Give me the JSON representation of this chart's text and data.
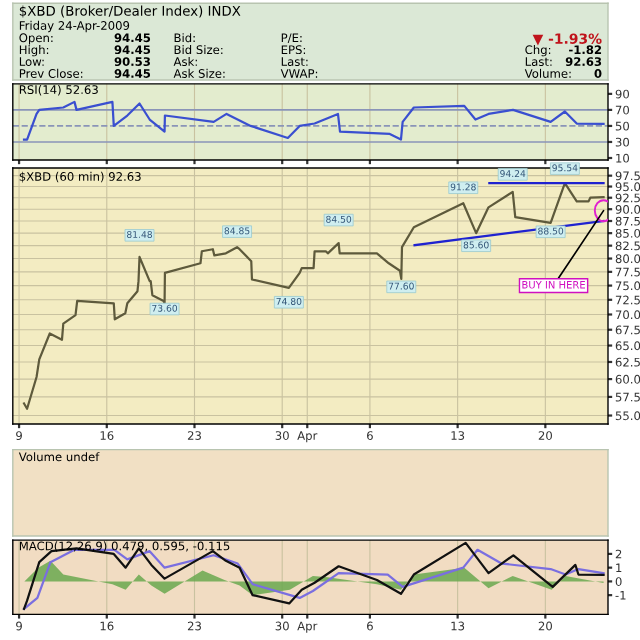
{
  "chart_data": [
    {
      "type": "other",
      "title": "$XBD (Broker/Dealer Index) INDX",
      "annotations": [
        "Friday 24-Apr-2009",
        "Open:",
        "94.45",
        "Bid:",
        "P/E:",
        "▼ -1.93%",
        "High:",
        "94.45",
        "Bid Size:",
        "EPS:",
        "Chg:",
        "-1.82",
        "Low:",
        "90.53",
        "Ask:",
        "Last:",
        "Last:",
        "92.63",
        "Prev Close:",
        "94.45",
        "Ask Size:",
        "VWAP:",
        "Volume:",
        "0"
      ]
    },
    {
      "type": "line",
      "title": "RSI(14) 52.63",
      "x": [
        "2009-03-09T09:30",
        "2009-03-09T15:21",
        "2009-03-10T09:30",
        "2009-03-10T14:42",
        "2009-03-12T12:45",
        "2009-03-13T10:09",
        "2009-03-13T14:03",
        "2009-03-16T10:48",
        "2009-03-16T13:24",
        "2009-03-17T15:21",
        "2009-03-18T14:42",
        "2009-03-19T10:09",
        "2009-03-20T14:42",
        "2009-03-20T15:21",
        "2009-03-24T12:45",
        "2009-03-25T13:24",
        "2009-03-27T11:27",
        "2009-03-30T10:48",
        "2009-03-31T09:30",
        "2009-04-01T14:03",
        "2009-04-03T10:48",
        "2009-04-03T14:42",
        "2009-04-07T14:03",
        "2009-04-08T11:27",
        "2009-04-08T14:42",
        "2009-04-09T12:06",
        "2009-04-13T12:45",
        "2009-04-14T10:09",
        "2009-04-15T11:08",
        "2009-04-17T10:09",
        "2009-04-20T10:09",
        "2009-04-21T13:24",
        "2009-04-22T12:06",
        "2009-04-24T15:30"
      ],
      "series": [
        {
          "color": "#3a4fd0",
          "values": [
            33,
            33,
            65,
            70,
            73,
            80,
            70,
            80,
            50,
            63,
            78,
            58,
            43,
            63,
            55,
            65,
            50,
            35,
            50,
            53,
            65,
            43,
            40,
            33,
            55,
            73,
            75,
            58,
            65,
            70,
            55,
            68,
            53,
            52.63
          ]
        }
      ],
      "ref_lines": [
        {
          "axis": "y",
          "value": 70,
          "color": "#8a94b8",
          "line_style": "solid"
        },
        {
          "axis": "y",
          "value": 50,
          "color": "#8a94b8",
          "line_style": "dashed"
        },
        {
          "axis": "y",
          "value": 30,
          "color": "#8a94b8",
          "line_style": "solid"
        }
      ],
      "xlim": [
        "2009-03-08T12:00",
        "2009-04-25T00:00"
      ],
      "xticks": [
        "2009-03-09",
        "2009-03-16",
        "2009-03-23",
        "2009-03-30",
        "2009-04-01",
        "2009-04-06",
        "2009-04-13",
        "2009-04-20"
      ],
      "ylim": [
        7.5,
        102.5
      ],
      "yticks": [
        90,
        70,
        50,
        30,
        10
      ],
      "tick_labels": "y",
      "grid": "x"
    },
    {
      "type": "line",
      "title": "$XBD (60 min) 92.63",
      "x": [
        "2009-03-09T09:30",
        "2009-03-09T15:21",
        "2009-03-10T09:30",
        "2009-03-10T14:42",
        "2009-03-11T10:48",
        "2009-03-12T10:09",
        "2009-03-12T12:45",
        "2009-03-13T12:06",
        "2009-03-13T15:21",
        "2009-03-16T13:24",
        "2009-03-16T15:21",
        "2009-03-17T11:27",
        "2009-03-17T15:21",
        "2009-03-18T10:48",
        "2009-03-18T12:45",
        "2009-03-18T14:42",
        "2009-03-19T10:09",
        "2009-03-19T12:06",
        "2009-03-19T15:21",
        "2009-03-20T12:45",
        "2009-03-20T14:42",
        "2009-03-20T15:21",
        "2009-03-23T11:27",
        "2009-03-23T14:03",
        "2009-03-24T11:08",
        "2009-03-24T14:03",
        "2009-03-25T12:06",
        "2009-03-26T09:30",
        "2009-03-26T14:22",
        "2009-03-27T12:45",
        "2009-03-27T14:03",
        "2009-03-30T12:45",
        "2009-03-31T09:30",
        "2009-03-31T13:24",
        "2009-04-01T12:06",
        "2009-04-01T14:03",
        "2009-04-02T11:27",
        "2009-04-02T15:21",
        "2009-04-03T12:06",
        "2009-04-03T14:03",
        "2009-04-06T13:24",
        "2009-04-07T12:06",
        "2009-04-08T09:30",
        "2009-04-08T12:06",
        "2009-04-08T13:24",
        "2009-04-09T12:06",
        "2009-04-13T10:48",
        "2009-04-14T11:27",
        "2009-04-15T11:08",
        "2009-04-17T09:30",
        "2009-04-17T14:22",
        "2009-04-20T10:09",
        "2009-04-21T13:24",
        "2009-04-22T12:06",
        "2009-04-23T10:48",
        "2009-04-23T14:03",
        "2009-04-24T15:30"
      ],
      "series": [
        {
          "color": "#5e5a3c",
          "values": [
            56.6,
            55.9,
            60.3,
            62.9,
            66.9,
            65.9,
            68.5,
            69.9,
            72.3,
            71.9,
            69.2,
            70.2,
            71.9,
            74.0,
            75.8,
            80.3,
            75.8,
            75.8,
            73.3,
            72.3,
            71.9,
            77.3,
            79.1,
            81.4,
            81.8,
            80.6,
            81.0,
            82.2,
            81.8,
            79.5,
            76.1,
            74.6,
            77.3,
            78.2,
            78.2,
            81.4,
            81.4,
            81.0,
            83.0,
            81.0,
            81.0,
            79.1,
            77.7,
            76.2,
            82.2,
            86.2,
            91.3,
            85.0,
            90.4,
            93.8,
            88.3,
            87.1,
            95.8,
            91.7,
            91.7,
            92.5,
            92.63
          ]
        },
        {
          "type": "line",
          "color": "#1f22d0",
          "x": [
            "2009-04-15T12:45",
            "2009-04-24T15:30"
          ],
          "values": [
            95.8,
            95.8
          ]
        },
        {
          "type": "line",
          "color": "#1f22d0",
          "x": [
            "2009-04-09T13:24",
            "2009-04-24T15:30"
          ],
          "values": [
            82.6,
            87.5
          ]
        }
      ],
      "annotations": [
        {
          "text": "81.48",
          "x": "2009-03-18T14:42",
          "y": 81.48
        },
        {
          "text": "73.60",
          "x": "2009-03-20T14:42",
          "y": 73.6
        },
        {
          "text": "84.85",
          "x": "2009-03-26T09:30",
          "y": 82.2
        },
        {
          "text": "74.80",
          "x": "2009-03-30T12:45",
          "y": 74.8
        },
        {
          "text": "84.50",
          "x": "2009-04-03T12:06",
          "y": 84.5
        },
        {
          "text": "77.60",
          "x": "2009-04-08T12:06",
          "y": 77.6
        },
        {
          "text": "91.28",
          "x": "2009-04-13T10:48",
          "y": 91.28
        },
        {
          "text": "85.60",
          "x": "2009-04-14T11:27",
          "y": 85.6
        },
        {
          "text": "94.24",
          "x": "2009-04-17T09:30",
          "y": 94.24
        },
        {
          "text": "88.50",
          "x": "2009-04-20T10:09",
          "y": 88.5
        },
        {
          "text": "95.54",
          "x": "2009-04-21T13:24",
          "y": 95.54
        },
        {
          "text": "BUY IN HERE",
          "x": "2009-04-24T15:30",
          "y": 89.7
        }
      ],
      "log": true,
      "xlim": [
        "2009-03-08T12:00",
        "2009-04-25T00:00"
      ],
      "xticks": [
        {
          "value": "2009-03-09",
          "label": "9"
        },
        {
          "value": "2009-03-16",
          "label": "16"
        },
        {
          "value": "2009-03-23",
          "label": "23"
        },
        {
          "value": "2009-03-30",
          "label": "30"
        },
        {
          "value": "2009-04-01",
          "label": "Apr"
        },
        {
          "value": "2009-04-06",
          "label": "6"
        },
        {
          "value": "2009-04-13",
          "label": "13"
        },
        {
          "value": "2009-04-20",
          "label": "20"
        }
      ],
      "ylim": [
        53.9,
        99.3
      ],
      "yticks": [
        {
          "value": 55,
          "label": "55.0"
        },
        {
          "value": 57.5,
          "label": "57.5"
        },
        {
          "value": 60,
          "label": "60.0"
        },
        {
          "value": 62.5,
          "label": "62.5"
        },
        {
          "value": 65,
          "label": "65.0"
        },
        {
          "value": 67.5,
          "label": "67.5"
        },
        {
          "value": 70,
          "label": "70.0"
        },
        {
          "value": 72.5,
          "label": "72.5"
        },
        {
          "value": 75,
          "label": "75.0"
        },
        {
          "value": 77.5,
          "label": "77.5"
        },
        {
          "value": 80,
          "label": "80.0"
        },
        {
          "value": 82.5,
          "label": "82.5"
        },
        {
          "value": 85,
          "label": "85.0"
        },
        {
          "value": 87.5,
          "label": "87.5"
        },
        {
          "value": 90,
          "label": "90.0"
        },
        {
          "value": 92.5,
          "label": "92.5"
        },
        {
          "value": 95,
          "label": "95.0"
        },
        {
          "value": 97.5,
          "label": "97.5"
        }
      ],
      "grid": true
    },
    {
      "type": "other",
      "title": "Volume undef"
    },
    {
      "type": "line",
      "title": "MACD(12,26,9) 0.479, 0.595, -0.115",
      "series": [
        {
          "type": "area",
          "color": "#6aa84f",
          "x": [
            "2009-03-09T10:09",
            "2009-03-10T12:45",
            "2009-03-11T12:06",
            "2009-03-12T12:45",
            "2009-03-16T10:48",
            "2009-03-17T12:06",
            "2009-03-18T13:24",
            "2009-03-19T13:24",
            "2009-03-20T14:42",
            "2009-03-23T15:21",
            "2009-03-25T09:30",
            "2009-03-26T14:22",
            "2009-03-27T15:21",
            "2009-03-30T14:42",
            "2009-04-01T10:48",
            "2009-04-02T15:21",
            "2009-04-06T13:24",
            "2009-04-08T11:27",
            "2009-04-09T12:06",
            "2009-04-13T12:45",
            "2009-04-15T11:08",
            "2009-04-17T09:30",
            "2009-04-20T12:06",
            "2009-04-21T14:42",
            "2009-04-24T15:30"
          ],
          "values": [
            0,
            1.0,
            1.5,
            0.5,
            -0.2,
            -0.6,
            0.5,
            -0.3,
            -0.9,
            0.8,
            0.1,
            -0.3,
            -1.0,
            -0.6,
            0.4,
            0.3,
            -0.2,
            -0.6,
            0.5,
            1.0,
            -0.5,
            0.4,
            -0.6,
            0.4,
            -0.115
          ]
        },
        {
          "type": "line",
          "color": "#7a6ee0",
          "x": [
            "2009-03-09T09:30",
            "2009-03-10T11:08",
            "2009-03-11T12:06",
            "2009-03-13T10:09",
            "2009-03-16T14:42",
            "2009-03-17T15:21",
            "2009-03-19T10:09",
            "2009-03-20T14:42",
            "2009-03-24T12:45",
            "2009-03-26T10:48",
            "2009-03-27T15:21",
            "2009-03-31T09:30",
            "2009-04-01T10:48",
            "2009-04-03T12:06",
            "2009-04-07T10:09",
            "2009-04-08T14:42",
            "2009-04-13T10:48",
            "2009-04-14T14:03",
            "2009-04-16T12:06",
            "2009-04-20T10:09",
            "2009-04-21T14:42",
            "2009-04-22T15:21",
            "2009-04-24T15:30"
          ],
          "values": [
            -2,
            -1.2,
            1.4,
            2.3,
            2.3,
            1.6,
            2.2,
            1.0,
            1.9,
            1.3,
            -0.2,
            -1.2,
            -0.7,
            0.6,
            0.5,
            -0.4,
            1.0,
            2.3,
            1.3,
            0.9,
            0.5,
            0.9,
            0.595
          ]
        },
        {
          "type": "line",
          "color": "#111111",
          "x": [
            "2009-03-09T09:30",
            "2009-03-09T15:21",
            "2009-03-10T14:42",
            "2009-03-11T14:03",
            "2009-03-13T14:03",
            "2009-03-16T13:24",
            "2009-03-17T12:06",
            "2009-03-18T13:24",
            "2009-03-19T13:24",
            "2009-03-20T14:42",
            "2009-03-24T11:08",
            "2009-03-25T12:06",
            "2009-03-26T14:22",
            "2009-03-27T15:21",
            "2009-03-30T13:24",
            "2009-03-31T13:24",
            "2009-04-01T14:03",
            "2009-04-03T12:06",
            "2009-04-06T13:24",
            "2009-04-08T11:27",
            "2009-04-09T12:06",
            "2009-04-13T15:21",
            "2009-04-15T11:08",
            "2009-04-17T10:48",
            "2009-04-20T14:03",
            "2009-04-22T09:30",
            "2009-04-22T15:21",
            "2009-04-24T15:30"
          ],
          "values": [
            -2,
            -1.4,
            1.4,
            2.2,
            2.4,
            2.0,
            1.0,
            2.4,
            1.2,
            0.2,
            2.2,
            1.5,
            1.0,
            -1.0,
            -1.6,
            -0.6,
            -0.1,
            1.1,
            0.1,
            -0.9,
            0.5,
            2.8,
            0.6,
            1.9,
            -0.4,
            1.2,
            0.5,
            0.479
          ]
        }
      ],
      "xlim": [
        "2009-03-08T12:00",
        "2009-04-25T00:00"
      ],
      "xticks": [
        {
          "value": "2009-03-09",
          "label": "9"
        },
        {
          "value": "2009-03-16",
          "label": "16"
        },
        {
          "value": "2009-03-23",
          "label": "23"
        },
        {
          "value": "2009-03-30",
          "label": "30"
        },
        {
          "value": "2009-04-01",
          "label": "Apr"
        },
        {
          "value": "2009-04-06",
          "label": "6"
        },
        {
          "value": "2009-04-13",
          "label": "13"
        },
        {
          "value": "2009-04-20",
          "label": "20"
        }
      ],
      "ylim": [
        -2.4,
        3.0
      ],
      "yticks": [
        2,
        1,
        0,
        -1
      ],
      "grid": "x"
    }
  ]
}
